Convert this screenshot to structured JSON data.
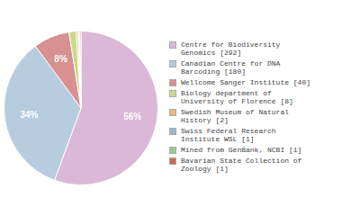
{
  "chart_data": {
    "type": "pie",
    "categories": [
      "Centre for Biodiversity\nGenomics [292]",
      "Canadian Centre for DNA\nBarcoding [180]",
      "Wellcome Sanger Institute [40]",
      "Biology department of\nUniversity of Florence [8]",
      "Swedish Museum of Natural\nHistory [2]",
      "Swiss Federal Research\nInstitute WSL [1]",
      "Mined from GenBank, NCBI [1]",
      "Bavarian State Collection of\nZoology [1]"
    ],
    "values": [
      55.6,
      34.3,
      7.6,
      1.5,
      0.4,
      0.2,
      0.2,
      0.2
    ],
    "value_labels": [
      "56%",
      "34%",
      "8%",
      null,
      null,
      null,
      null,
      null
    ],
    "colors": [
      "#dbb8d8",
      "#b8cce0",
      "#d89090",
      "#ccd888",
      "#e8b878",
      "#98b8d8",
      "#98cc88",
      "#cc6855"
    ],
    "data_labels": true,
    "legend": "right"
  }
}
